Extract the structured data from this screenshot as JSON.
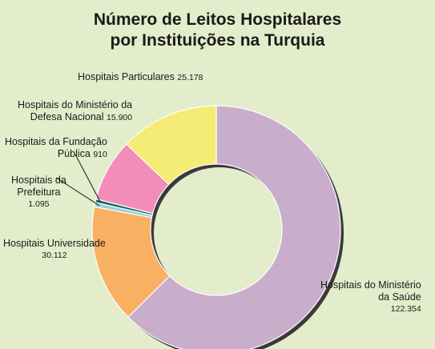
{
  "chart_data": {
    "type": "pie",
    "variant": "donut",
    "title": [
      "Número de Leitos Hospitalares",
      "por Instituições na Turquia"
    ],
    "slices": [
      {
        "name": "Hospitais do Ministério da Saúde",
        "label_lines": [
          "Hospitais do Ministério",
          "da Saúde"
        ],
        "value_text": "122.354",
        "value": 122354,
        "color": "#c8aecb"
      },
      {
        "name": "Hospitais Universidade",
        "label_lines": [
          "Hospitais Universidade"
        ],
        "value_text": "30.112",
        "value": 30112,
        "color": "#f8b163"
      },
      {
        "name": "Hospitais da Prefeitura",
        "label_lines": [
          "Hospitais da",
          "Prefeitura"
        ],
        "value_text": "1.095",
        "value": 1095,
        "color": "#8fd1dc"
      },
      {
        "name": "Hospitais da Fundação Pública",
        "label_lines": [
          "Hospitais da Fundação",
          "Pública"
        ],
        "value_text": "910",
        "value": 910,
        "color": "#1e6e5c"
      },
      {
        "name": "Hospitais do Ministério da Defesa Nacional",
        "label_lines": [
          "Hospitais do Ministério da",
          "Defesa Nacional"
        ],
        "value_text": "15.900",
        "value": 15900,
        "color": "#f28cb8"
      },
      {
        "name": "Hospitais Particulares",
        "label_lines": [
          "Hospitais Particulares"
        ],
        "value_text": "25.178",
        "value": 25178,
        "color": "#f4ec74"
      }
    ],
    "legend": "none"
  }
}
